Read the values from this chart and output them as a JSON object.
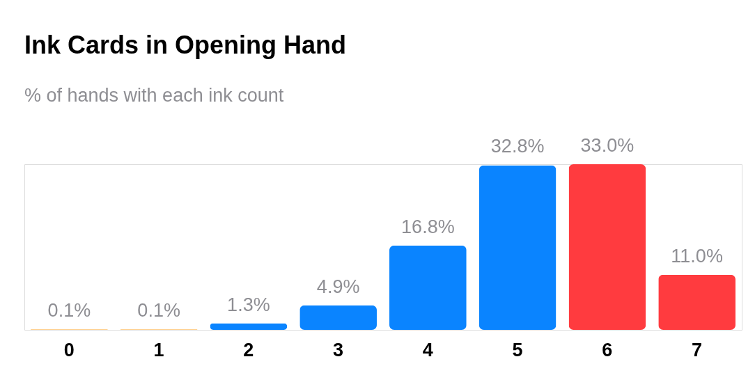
{
  "chart_data": {
    "type": "bar",
    "title": "Ink Cards in Opening Hand",
    "subtitle": "% of hands with each ink count",
    "categories": [
      "0",
      "1",
      "2",
      "3",
      "4",
      "5",
      "6",
      "7"
    ],
    "values": [
      0.1,
      0.1,
      1.3,
      4.9,
      16.8,
      32.8,
      33.0,
      11.0
    ],
    "colors": [
      "#ff9500",
      "#ff9500",
      "#0a84ff",
      "#0a84ff",
      "#0a84ff",
      "#0a84ff",
      "#ff3b3f",
      "#ff3b3f"
    ],
    "value_labels": [
      "0.1%",
      "0.1%",
      "1.3%",
      "4.9%",
      "16.8%",
      "32.8%",
      "33.0%",
      "11.0%"
    ],
    "grid": false
  }
}
